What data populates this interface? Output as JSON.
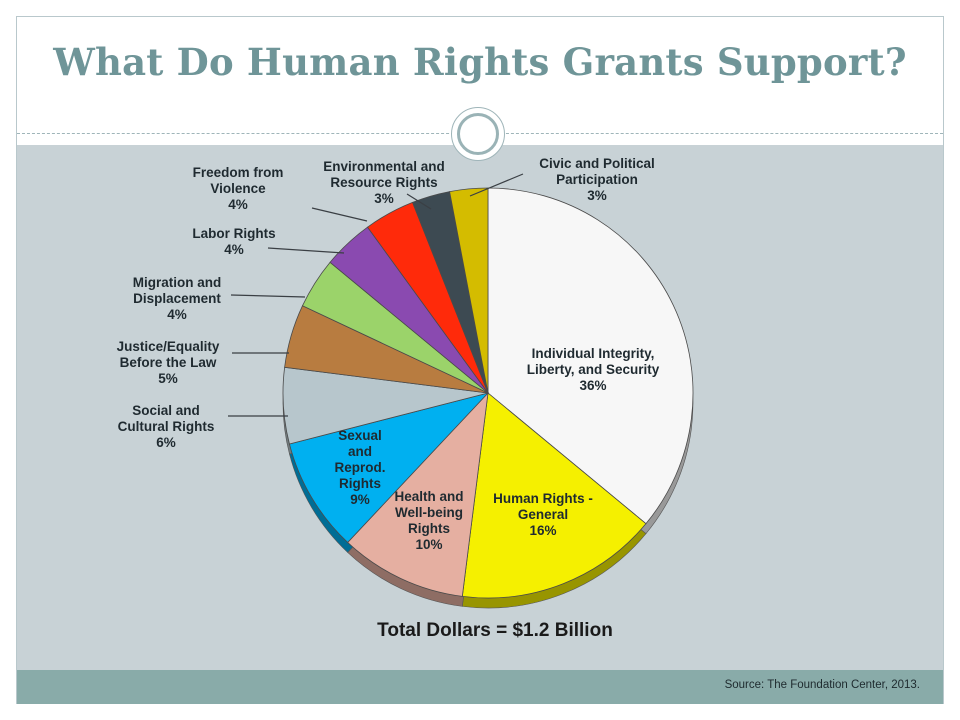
{
  "slide": {
    "title": "What Do Human Rights Grants Support?",
    "total_text": "Total Dollars = $1.2 Billion",
    "source_text": "Source: The Foundation Center, 2013."
  },
  "chart_data": {
    "type": "pie",
    "unit": "%",
    "slices": [
      {
        "label": "Individual Integrity, Liberty, and Security",
        "lines": [
          "Individual Integrity,",
          "Liberty, and Security",
          "36%"
        ],
        "value": 36,
        "color": "#f7f7f7"
      },
      {
        "label": "Human Rights - General",
        "lines": [
          "Human Rights -",
          "General",
          "16%"
        ],
        "value": 16,
        "color": "#f5f000"
      },
      {
        "label": "Health and Well-being Rights",
        "lines": [
          "Health and",
          "Well-being",
          "Rights",
          "10%"
        ],
        "value": 10,
        "color": "#e5afa1"
      },
      {
        "label": "Sexual and Reprod. Rights",
        "lines": [
          "Sexual",
          "and",
          "Reprod.",
          "Rights",
          "9%"
        ],
        "value": 9,
        "color": "#00b0f0"
      },
      {
        "label": "Social and Cultural Rights",
        "lines": [
          "Social and",
          "Cultural Rights",
          "6%"
        ],
        "value": 6,
        "color": "#b7c6cc"
      },
      {
        "label": "Justice/Equality Before the Law",
        "lines": [
          "Justice/Equality",
          "Before the Law",
          "5%"
        ],
        "value": 5,
        "color": "#b87c40"
      },
      {
        "label": "Migration and Displacement",
        "lines": [
          "Migration and",
          "Displacement",
          "4%"
        ],
        "value": 4,
        "color": "#9bd36a"
      },
      {
        "label": "Labor Rights",
        "lines": [
          "Labor Rights",
          "4%"
        ],
        "value": 4,
        "color": "#8a4ab0"
      },
      {
        "label": "Freedom from Violence",
        "lines": [
          "Freedom from",
          "Violence",
          "4%"
        ],
        "value": 4,
        "color": "#ff2a0a"
      },
      {
        "label": "Environmental and Resource Rights",
        "lines": [
          "Environmental and",
          "Resource Rights",
          "3%"
        ],
        "value": 3,
        "color": "#3d4a52"
      },
      {
        "label": "Civic and Political Participation",
        "lines": [
          "Civic and Political",
          "Participation",
          "3%"
        ],
        "value": 3,
        "color": "#d4bc00"
      }
    ]
  }
}
